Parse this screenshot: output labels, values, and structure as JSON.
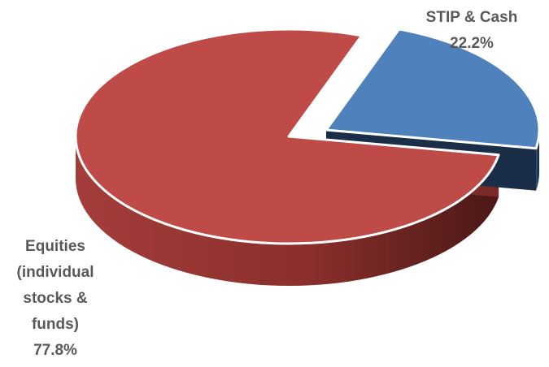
{
  "chart_data": {
    "type": "pie",
    "style": "3d-exploded",
    "title": "",
    "legend": "none",
    "slices": [
      {
        "label_lines": [
          "Equities",
          "(individual",
          "stocks &",
          "funds)"
        ],
        "label": "Equities (individual stocks & funds)",
        "value": 77.8,
        "value_label": "77.8%",
        "color": "#be4b48",
        "side_color_dark": "#5a1f1d",
        "side_color_light": "#a43d3a",
        "exploded": false
      },
      {
        "label_lines": [
          "STIP & Cash"
        ],
        "label": "STIP & Cash",
        "value": 22.2,
        "value_label": "22.2%",
        "color": "#4f81bd",
        "side_color_dark": "#1e3650",
        "side_color_light": "#2c4d73",
        "exploded": true
      }
    ]
  }
}
